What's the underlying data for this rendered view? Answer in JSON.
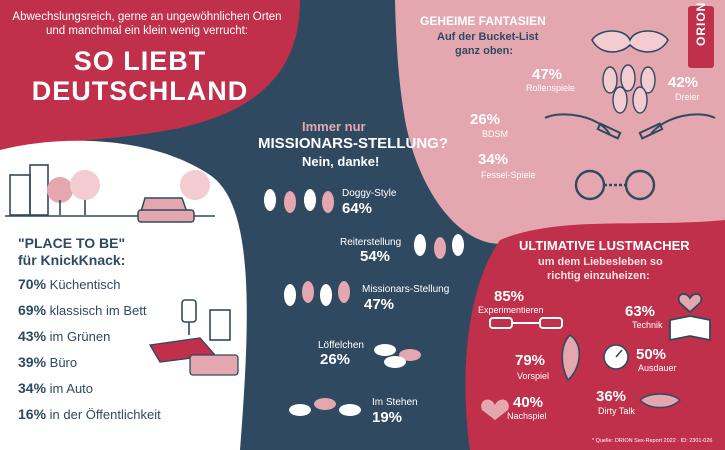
{
  "header": {
    "intro": "Abwechslungsreich, gerne an ungewöhnlichen Orten und manchmal ein klein wenig verrucht:",
    "title_line1": "SO LIEBT",
    "title_line2": "DEUTSCHLAND"
  },
  "place_to_be": {
    "title_line1": "\"PLACE TO BE\"",
    "title_line2": "für KnickKnack:",
    "items": [
      {
        "pct": "70%",
        "label": "Küchentisch"
      },
      {
        "pct": "69%",
        "label": "klassisch im Bett"
      },
      {
        "pct": "43%",
        "label": "im Grünen"
      },
      {
        "pct": "39%",
        "label": "Büro"
      },
      {
        "pct": "34%",
        "label": "im Auto"
      },
      {
        "pct": "16%",
        "label": "in der Öffentlichkeit"
      }
    ]
  },
  "positions": {
    "title_line1": "Immer nur",
    "title_line2": "MISSIONARS-STELLUNG?",
    "title_line3": "Nein, danke!",
    "items": [
      {
        "label": "Doggy-Style",
        "pct": "64%"
      },
      {
        "label": "Reiterstellung",
        "pct": "54%"
      },
      {
        "label": "Missionars-Stellung",
        "pct": "47%"
      },
      {
        "label": "Löffelchen",
        "pct": "26%"
      },
      {
        "label": "Im Stehen",
        "pct": "19%"
      }
    ]
  },
  "fantasies": {
    "title": "GEHEIME FANTASIEN",
    "subtitle_line1": "Auf der Bucket-List",
    "subtitle_line2": "ganz oben:",
    "items": [
      {
        "pct": "47%",
        "label": "Rollenspiele"
      },
      {
        "pct": "42%",
        "label": "Dreier"
      },
      {
        "pct": "26%",
        "label": "BDSM"
      },
      {
        "pct": "34%",
        "label": "Fessel-Spiele"
      }
    ]
  },
  "lustmacher": {
    "title": "ULTIMATIVE LUSTMACHER",
    "subtitle_line1": "um dem Liebesleben so",
    "subtitle_line2": "richtig einzuheizen:",
    "items": [
      {
        "pct": "85%",
        "label": "Experimentieren"
      },
      {
        "pct": "63%",
        "label": "Technik"
      },
      {
        "pct": "79%",
        "label": "Vorspiel"
      },
      {
        "pct": "50%",
        "label": "Ausdauer"
      },
      {
        "pct": "40%",
        "label": "Nachspiel"
      },
      {
        "pct": "36%",
        "label": "Dirty Talk"
      }
    ]
  },
  "logo": {
    "text": "ORION"
  },
  "source": "* Quelle: ORION Sex-Report 2022 · ID: 2301-026",
  "colors": {
    "navy": "#2f4a60",
    "crimson": "#c0304a",
    "pink": "#e4a7b0",
    "white": "#ffffff"
  }
}
